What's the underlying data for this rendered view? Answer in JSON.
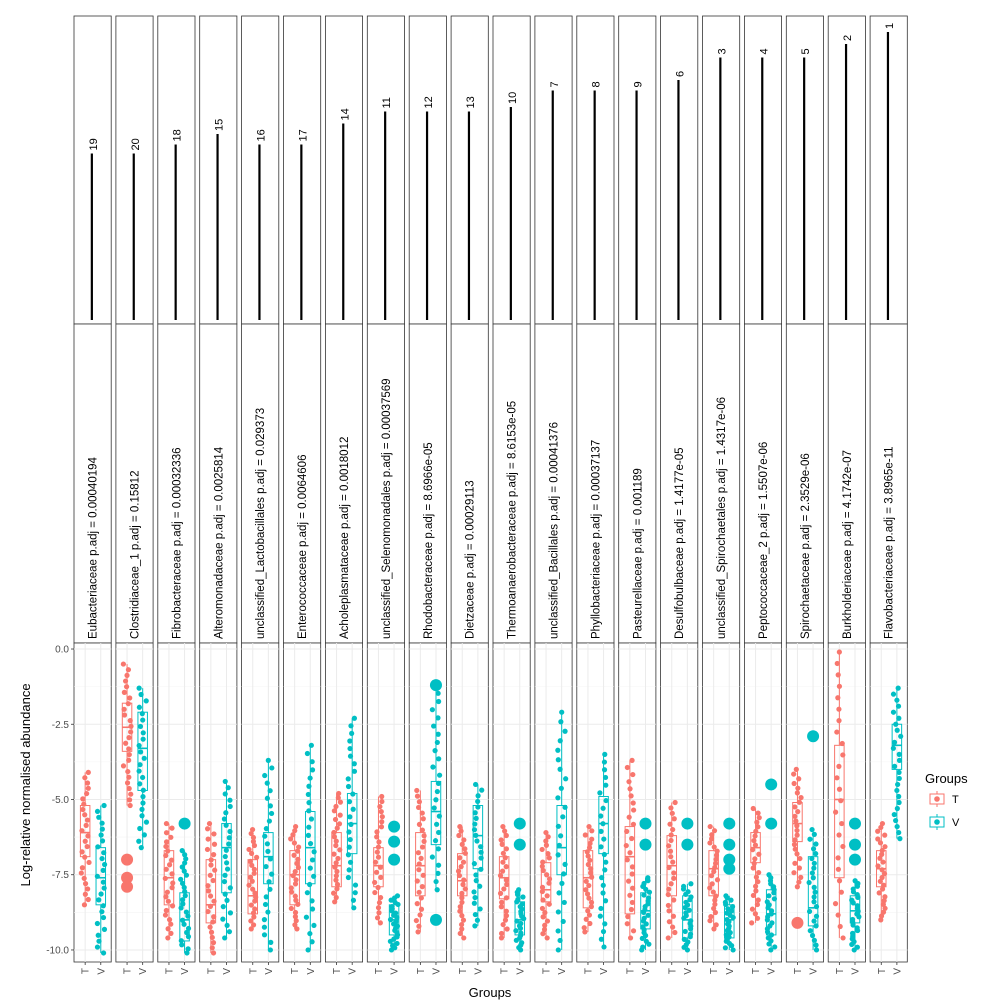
{
  "chart_data": {
    "type": "boxplot",
    "xlabel": "Groups",
    "ylabel": "Log-relative normalised abundance",
    "ylim": [
      -10.4,
      0.2
    ],
    "y_ticks": [
      0,
      -2.5,
      -5,
      -7.5,
      -10
    ],
    "y_tick_labels": [
      "0.0",
      "-2.5",
      "-5.0",
      "-7.5",
      "-10.0"
    ],
    "groups": [
      "T",
      "V"
    ],
    "group_colors": {
      "T": "#F8766D",
      "V": "#00BFC4"
    },
    "legend": {
      "title": "Groups",
      "entries": [
        "T",
        "V"
      ],
      "position": "right"
    },
    "grid": true,
    "panels": [
      {
        "strip": "Eubacteriaceae p.adj = 0.00040194",
        "rank": "19",
        "top_strip_line": 0.555,
        "boxes": {
          "T": {
            "q1": -6.9,
            "median": -6.1,
            "q3": -5.2,
            "whisker_low": -8.5,
            "whisker_high": -4.1
          },
          "V": {
            "q1": -8.5,
            "median": -7.6,
            "q3": -6.6,
            "whisker_low": -10.1,
            "whisker_high": -5.2
          }
        },
        "outliers": {
          "T": [],
          "V": []
        }
      },
      {
        "strip": "Clostridiaceae_1 p.adj = 0.15812",
        "rank": "20",
        "top_strip_line": 0.555,
        "boxes": {
          "T": {
            "q1": -3.4,
            "median": -2.6,
            "q3": -1.8,
            "whisker_low": -5.2,
            "whisker_high": -0.5
          },
          "V": {
            "q1": -4.7,
            "median": -3.3,
            "q3": -2.1,
            "whisker_low": -6.6,
            "whisker_high": -1.3
          }
        },
        "outliers": {
          "T": [
            -7.0,
            -7.6,
            -7.9
          ],
          "V": []
        }
      },
      {
        "strip": "Fibrobacteraceae p.adj = 0.00032336",
        "rank": "18",
        "top_strip_line": 0.585,
        "boxes": {
          "T": {
            "q1": -8.5,
            "median": -7.6,
            "q3": -6.7,
            "whisker_low": -9.6,
            "whisker_high": -5.8
          },
          "V": {
            "q1": -9.7,
            "median": -9.0,
            "q3": -8.1,
            "whisker_low": -10.1,
            "whisker_high": -6.7
          }
        },
        "outliers": {
          "T": [],
          "V": [
            -5.8
          ]
        }
      },
      {
        "strip": "Alteromonadaceae p.adj = 0.0025814",
        "rank": "15",
        "top_strip_line": 0.62,
        "boxes": {
          "T": {
            "q1": -9.1,
            "median": -8.5,
            "q3": -7.0,
            "whisker_low": -10.1,
            "whisker_high": -5.8
          },
          "V": {
            "q1": -8.1,
            "median": -6.6,
            "q3": -5.8,
            "whisker_low": -9.6,
            "whisker_high": -4.4
          }
        },
        "outliers": {
          "T": [],
          "V": []
        }
      },
      {
        "strip": "unclassified_Lactobacillales p.adj = 0.029373",
        "rank": "16",
        "top_strip_line": 0.585,
        "boxes": {
          "T": {
            "q1": -8.8,
            "median": -8.2,
            "q3": -7.0,
            "whisker_low": -9.3,
            "whisker_high": -6.0
          },
          "V": {
            "q1": -7.8,
            "median": -6.9,
            "q3": -6.1,
            "whisker_low": -10.0,
            "whisker_high": -3.7
          }
        },
        "outliers": {
          "T": [],
          "V": []
        }
      },
      {
        "strip": "Enterococcaceae p.adj = 0.0064606",
        "rank": "17",
        "top_strip_line": 0.585,
        "boxes": {
          "T": {
            "q1": -8.5,
            "median": -7.5,
            "q3": -6.7,
            "whisker_low": -9.3,
            "whisker_high": -5.9
          },
          "V": {
            "q1": -7.8,
            "median": -6.6,
            "q3": -5.4,
            "whisker_low": -10.0,
            "whisker_high": -3.2
          }
        },
        "outliers": {
          "T": [],
          "V": []
        }
      },
      {
        "strip": "Acholeplasmataceae p.adj = 0.0018012",
        "rank": "14",
        "top_strip_line": 0.655,
        "boxes": {
          "T": {
            "q1": -7.9,
            "median": -7.2,
            "q3": -6.1,
            "whisker_low": -8.4,
            "whisker_high": -4.8
          },
          "V": {
            "q1": -6.8,
            "median": -5.8,
            "q3": -4.8,
            "whisker_low": -8.6,
            "whisker_high": -2.3
          }
        },
        "outliers": {
          "T": [],
          "V": []
        }
      },
      {
        "strip": "unclassified_Selenomonadales p.adj = 0.00037569",
        "rank": "11",
        "top_strip_line": 0.695,
        "boxes": {
          "T": {
            "q1": -7.9,
            "median": -7.2,
            "q3": -6.6,
            "whisker_low": -9.1,
            "whisker_high": -4.9
          },
          "V": {
            "q1": -9.5,
            "median": -9.0,
            "q3": -8.5,
            "whisker_low": -10.0,
            "whisker_high": -8.2
          }
        },
        "outliers": {
          "T": [],
          "V": [
            -5.9,
            -6.4,
            -7.0
          ]
        }
      },
      {
        "strip": "Rhodobacteraceae p.adj = 8.6966e-05",
        "rank": "12",
        "top_strip_line": 0.695,
        "boxes": {
          "T": {
            "q1": -8.2,
            "median": -7.2,
            "q3": -6.1,
            "whisker_low": -9.4,
            "whisker_high": -4.7
          },
          "V": {
            "q1": -6.5,
            "median": -5.4,
            "q3": -4.4,
            "whisker_low": -8.0,
            "whisker_high": -1.2
          }
        },
        "outliers": {
          "T": [],
          "V": [
            -9.0,
            -1.2
          ]
        }
      },
      {
        "strip": "Dietzaceae p.adj = 0.00029113",
        "rank": "13",
        "top_strip_line": 0.695,
        "boxes": {
          "T": {
            "q1": -8.2,
            "median": -7.7,
            "q3": -6.8,
            "whisker_low": -9.6,
            "whisker_high": -5.9
          },
          "V": {
            "q1": -7.3,
            "median": -6.2,
            "q3": -5.2,
            "whisker_low": -9.2,
            "whisker_high": -4.5
          }
        },
        "outliers": {
          "T": [],
          "V": []
        }
      },
      {
        "strip": "Thermoanaerobacteraceae p.adj = 8.6153e-05",
        "rank": "10",
        "top_strip_line": 0.71,
        "boxes": {
          "T": {
            "q1": -8.3,
            "median": -7.6,
            "q3": -6.9,
            "whisker_low": -9.6,
            "whisker_high": -5.9
          },
          "V": {
            "q1": -9.5,
            "median": -9.0,
            "q3": -8.4,
            "whisker_low": -10.0,
            "whisker_high": -8.0
          }
        },
        "outliers": {
          "T": [],
          "V": [
            -5.8,
            -6.5
          ]
        }
      },
      {
        "strip": "unclassified_Bacillales p.adj = 0.00041376",
        "rank": "7",
        "top_strip_line": 0.765,
        "boxes": {
          "T": {
            "q1": -8.4,
            "median": -8.0,
            "q3": -7.1,
            "whisker_low": -9.6,
            "whisker_high": -6.1
          },
          "V": {
            "q1": -7.5,
            "median": -6.6,
            "q3": -5.2,
            "whisker_low": -10.0,
            "whisker_high": -2.1
          }
        },
        "outliers": {
          "T": [],
          "V": []
        }
      },
      {
        "strip": "Phyllobacteriaceae p.adj = 0.00037137",
        "rank": "8",
        "top_strip_line": 0.765,
        "boxes": {
          "T": {
            "q1": -8.6,
            "median": -7.6,
            "q3": -6.7,
            "whisker_low": -9.4,
            "whisker_high": -5.9
          },
          "V": {
            "q1": -6.8,
            "median": -5.8,
            "q3": -4.9,
            "whisker_low": -9.9,
            "whisker_high": -3.5
          }
        },
        "outliers": {
          "T": [],
          "V": []
        }
      },
      {
        "strip": "Pasteurellaceae p.adj = 0.001189",
        "rank": "9",
        "top_strip_line": 0.765,
        "boxes": {
          "T": {
            "q1": -8.8,
            "median": -6.9,
            "q3": -5.9,
            "whisker_low": -9.6,
            "whisker_high": -3.7
          },
          "V": {
            "q1": -9.3,
            "median": -8.7,
            "q3": -8.1,
            "whisker_low": -10.0,
            "whisker_high": -7.6
          }
        },
        "outliers": {
          "T": [],
          "V": [
            -5.8,
            -6.5
          ]
        }
      },
      {
        "strip": "Desulfobulbaceae p.adj = 1.4177e-05",
        "rank": "6",
        "top_strip_line": 0.8,
        "boxes": {
          "T": {
            "q1": -8.2,
            "median": -7.2,
            "q3": -6.2,
            "whisker_low": -9.6,
            "whisker_high": -5.1
          },
          "V": {
            "q1": -9.6,
            "median": -9.0,
            "q3": -8.2,
            "whisker_low": -10.0,
            "whisker_high": -7.8
          }
        },
        "outliers": {
          "T": [],
          "V": [
            -5.8,
            -6.5
          ]
        }
      },
      {
        "strip": "unclassified_Spirochaetales p.adj = 1.4317e-06",
        "rank": "3",
        "top_strip_line": 0.875,
        "boxes": {
          "T": {
            "q1": -8.2,
            "median": -7.3,
            "q3": -6.7,
            "whisker_low": -9.3,
            "whisker_high": -5.9
          },
          "V": {
            "q1": -9.6,
            "median": -9.0,
            "q3": -8.5,
            "whisker_low": -10.0,
            "whisker_high": -8.2
          }
        },
        "outliers": {
          "T": [],
          "V": [
            -5.8,
            -6.5,
            -7.0,
            -7.3
          ]
        }
      },
      {
        "strip": "Peptococcaceae_2 p.adj = 1.5507e-06",
        "rank": "4",
        "top_strip_line": 0.875,
        "boxes": {
          "T": {
            "q1": -7.1,
            "median": -6.6,
            "q3": -6.1,
            "whisker_low": -9.1,
            "whisker_high": -5.3
          },
          "V": {
            "q1": -9.5,
            "median": -8.8,
            "q3": -8.0,
            "whisker_low": -10.0,
            "whisker_high": -7.5
          }
        },
        "outliers": {
          "T": [],
          "V": [
            -4.5,
            -5.8
          ]
        }
      },
      {
        "strip": "Spirochaetaceae p.adj = 2.3529e-06",
        "rank": "5",
        "top_strip_line": 0.875,
        "boxes": {
          "T": {
            "q1": -6.4,
            "median": -5.8,
            "q3": -5.1,
            "whisker_low": -7.9,
            "whisker_high": -4.0
          },
          "V": {
            "q1": -9.2,
            "median": -8.6,
            "q3": -6.9,
            "whisker_low": -10.0,
            "whisker_high": -6.0
          }
        },
        "outliers": {
          "T": [
            -9.1
          ],
          "V": [
            -2.9
          ]
        }
      },
      {
        "strip": "Burkholderiaceae p.adj = 4.1742e-07",
        "rank": "2",
        "top_strip_line": 0.92,
        "boxes": {
          "T": {
            "q1": -7.6,
            "median": -5.0,
            "q3": -3.2,
            "whisker_low": -9.6,
            "whisker_high": -0.1
          },
          "V": {
            "q1": -9.1,
            "median": -8.7,
            "q3": -8.2,
            "whisker_low": -10.0,
            "whisker_high": -7.7
          }
        },
        "outliers": {
          "T": [],
          "V": [
            -5.8,
            -6.5,
            -7.0
          ]
        }
      },
      {
        "strip": "Flavobacteriaceae p.adj = 3.8965e-11",
        "rank": "1",
        "top_strip_line": 0.96,
        "boxes": {
          "T": {
            "q1": -7.9,
            "median": -7.3,
            "q3": -6.7,
            "whisker_low": -9.0,
            "whisker_high": -5.8
          },
          "V": {
            "q1": -4.0,
            "median": -3.2,
            "q3": -2.5,
            "whisker_low": -6.3,
            "whisker_high": -1.3
          }
        },
        "outliers": {
          "T": [],
          "V": []
        }
      }
    ]
  }
}
